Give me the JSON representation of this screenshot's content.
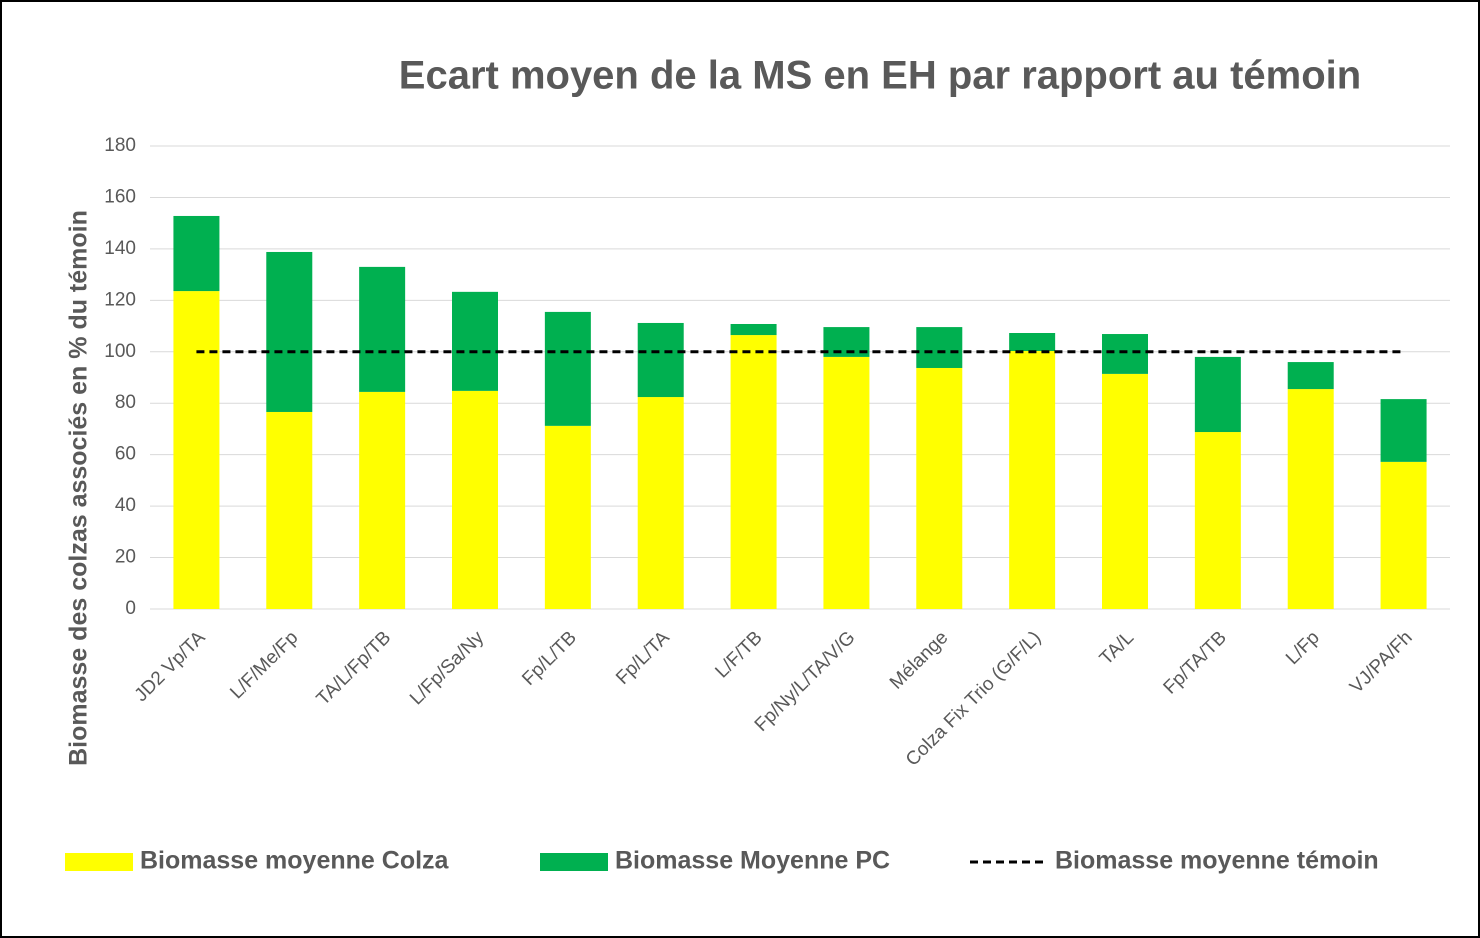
{
  "chart_data": {
    "type": "bar",
    "stacked": true,
    "title": "Ecart moyen de la MS en EH par rapport au témoin",
    "y_label": "Biomasse des colzas associés en % du témoin",
    "categories": [
      "JD2 Vp/TA",
      "L/F/Me/Fp",
      "TA/L/Fp/TB",
      "L/Fp/Sa/Ny",
      "Fp/L/TB",
      "Fp/L/TA",
      "L/F/TB",
      "Fp/Ny/L/TA/V/G",
      "Mélange",
      "Colza Fix Trio (G/F/L)",
      "TA/L",
      "Fp/TA/TB",
      "L/Fp",
      "VJ/PA/Fh"
    ],
    "series": [
      {
        "name": "Biomasse moyenne Colza",
        "color": "#ffff00",
        "values": [
          123.6,
          76.6,
          84.4,
          84.8,
          71.2,
          82.4,
          106.5,
          98,
          93.7,
          100.3,
          91.4,
          68.8,
          85.5,
          57.2
        ]
      },
      {
        "name": "Biomasse Moyenne PC",
        "color": "#00b050",
        "values": [
          29.2,
          62.2,
          48.6,
          38.5,
          44.3,
          28.8,
          4.3,
          11.6,
          15.9,
          7,
          15.5,
          29.2,
          10.5,
          24.4
        ]
      },
      {
        "name": "Biomasse moyenne témoin",
        "color": "#000000",
        "type": "line",
        "dashed": true,
        "values": [
          100,
          100,
          100,
          100,
          100,
          100,
          100,
          100,
          100,
          100,
          100,
          100,
          100,
          100
        ]
      }
    ],
    "ylim": [
      0,
      180
    ],
    "yticks": [
      0,
      20,
      40,
      60,
      80,
      100,
      120,
      140,
      160,
      180
    ],
    "grid": true
  }
}
